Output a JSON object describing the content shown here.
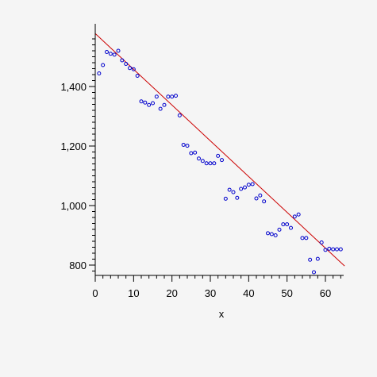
{
  "chart_data": {
    "type": "scatter",
    "title": "",
    "xlabel": "x",
    "ylabel": "",
    "xlim": [
      0,
      65
    ],
    "ylim": [
      760,
      1580
    ],
    "x_ticks": [
      0,
      10,
      20,
      30,
      40,
      50,
      60
    ],
    "x_tick_labels": [
      "0",
      "10",
      "20",
      "30",
      "40",
      "50",
      "60"
    ],
    "y_ticks": [
      800,
      1000,
      1200,
      1400
    ],
    "y_tick_labels": [
      "800",
      "1,000",
      "1,200",
      "1,400"
    ],
    "grid": false,
    "series": [
      {
        "kind": "points",
        "marker": "circle",
        "color": "#0000cc",
        "points": [
          [
            1,
            1444
          ],
          [
            2,
            1472
          ],
          [
            3,
            1516
          ],
          [
            4,
            1510
          ],
          [
            5,
            1507
          ],
          [
            6,
            1520
          ],
          [
            7,
            1488
          ],
          [
            8,
            1476
          ],
          [
            9,
            1462
          ],
          [
            10,
            1458
          ],
          [
            11,
            1436
          ],
          [
            12,
            1350
          ],
          [
            13,
            1346
          ],
          [
            14,
            1338
          ],
          [
            15,
            1344
          ],
          [
            16,
            1366
          ],
          [
            17,
            1325
          ],
          [
            18,
            1338
          ],
          [
            19,
            1366
          ],
          [
            20,
            1366
          ],
          [
            21,
            1369
          ],
          [
            22,
            1303
          ],
          [
            23,
            1204
          ],
          [
            24,
            1201
          ],
          [
            25,
            1176
          ],
          [
            26,
            1178
          ],
          [
            27,
            1158
          ],
          [
            28,
            1150
          ],
          [
            29,
            1142
          ],
          [
            30,
            1142
          ],
          [
            31,
            1142
          ],
          [
            32,
            1167
          ],
          [
            33,
            1153
          ],
          [
            34,
            1023
          ],
          [
            35,
            1053
          ],
          [
            36,
            1045
          ],
          [
            37,
            1026
          ],
          [
            38,
            1056
          ],
          [
            39,
            1061
          ],
          [
            40,
            1070
          ],
          [
            41,
            1072
          ],
          [
            42,
            1024
          ],
          [
            43,
            1034
          ],
          [
            44,
            1014
          ],
          [
            45,
            907
          ],
          [
            46,
            904
          ],
          [
            47,
            900
          ],
          [
            48,
            919
          ],
          [
            49,
            937
          ],
          [
            50,
            937
          ],
          [
            51,
            925
          ],
          [
            52,
            963
          ],
          [
            53,
            970
          ],
          [
            54,
            891
          ],
          [
            55,
            891
          ],
          [
            56,
            818
          ],
          [
            57,
            776
          ],
          [
            58,
            821
          ],
          [
            59,
            876
          ],
          [
            60,
            851
          ],
          [
            61,
            855
          ],
          [
            62,
            853
          ],
          [
            63,
            853
          ],
          [
            64,
            853
          ]
        ]
      },
      {
        "kind": "line",
        "color": "#cc0000",
        "points": [
          [
            0,
            1578
          ],
          [
            65,
            797
          ]
        ]
      }
    ]
  }
}
